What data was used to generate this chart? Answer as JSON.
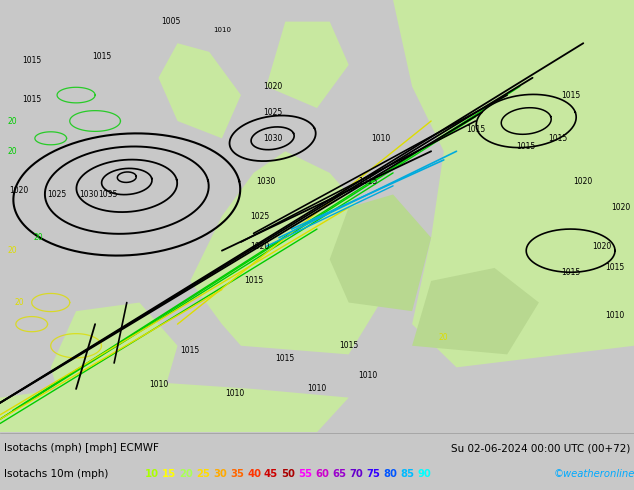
{
  "title_left": "Isotachs (mph) [mph] ECMWF",
  "title_right": "Su 02-06-2024 00:00 UTC (00+72)",
  "legend_label": "Isotachs 10m (mph)",
  "legend_values": [
    "10",
    "15",
    "20",
    "25",
    "30",
    "35",
    "40",
    "45",
    "50",
    "55",
    "60",
    "65",
    "70",
    "75",
    "80",
    "85",
    "90"
  ],
  "legend_colors": [
    "#aaff00",
    "#ffff00",
    "#aaff55",
    "#ffdd00",
    "#ffaa00",
    "#ff6600",
    "#ff3300",
    "#cc0000",
    "#aa0000",
    "#ff00ff",
    "#cc00cc",
    "#9900cc",
    "#6600cc",
    "#3300ff",
    "#0055ff",
    "#00bbff",
    "#00ffff"
  ],
  "watermark": "©weatheronline.co.uk",
  "watermark_color": "#00aaff",
  "bg_color": "#c8c8c8",
  "map_sea_color": "#d8d8d8",
  "map_land_color": "#c8e8a0",
  "map_land_color2": "#b8d890",
  "bottom_bg": "#ffffff",
  "text_color": "#000000",
  "isobar_color": "#000000",
  "isotach_green": "#00cc00",
  "isotach_yellow": "#dddd00",
  "isotach_blue": "#00aadd",
  "fig_width": 6.34,
  "fig_height": 4.9,
  "dpi": 100
}
